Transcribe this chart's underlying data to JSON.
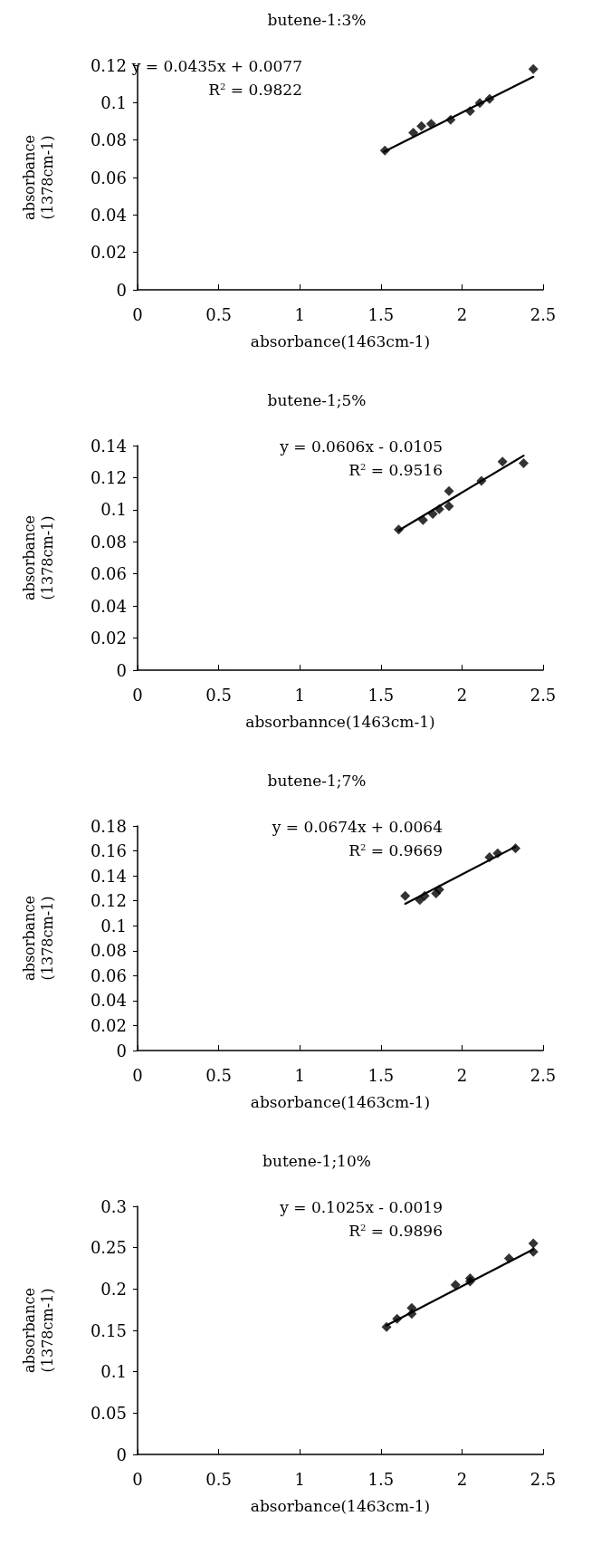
{
  "chart_data": [
    {
      "type": "scatter",
      "title": "butene-1:3%",
      "xlabel": "absorbance(1463cm-1)",
      "ylabel": "absorbance (1378cm-1)",
      "xlim": [
        0,
        2.5
      ],
      "xticks": [
        0,
        0.5,
        1,
        1.5,
        2,
        2.5
      ],
      "ylim": [
        0,
        0.12
      ],
      "yticks": [
        0,
        0.02,
        0.04,
        0.06,
        0.08,
        0.1,
        0.12
      ],
      "grid": false,
      "annotations": [
        "y = 0.0435x + 0.0077",
        "R$^{2}$ = 0.9822"
      ],
      "series": [
        {
          "type": "scatter",
          "color": "#000000",
          "marker": "diamond",
          "x": [
            1.525,
            1.7,
            1.75,
            1.81,
            1.93,
            2.05,
            2.11,
            2.17,
            2.44
          ],
          "values": [
            0.0744,
            0.084,
            0.0875,
            0.0887,
            0.0909,
            0.0954,
            0.0998,
            0.102,
            0.118
          ]
        },
        {
          "type": "line",
          "color": "#000000",
          "marker": "none",
          "line_style": "solid",
          "x": [
            1.52,
            2.44
          ],
          "values": [
            0.0738,
            0.1138
          ]
        }
      ]
    },
    {
      "type": "scatter",
      "title": "butene-1;5%",
      "xlabel": "absorbannce(1463cm-1)",
      "ylabel": "absorbance (1378cm-1)",
      "xlim": [
        0,
        2.5
      ],
      "xticks": [
        0,
        0.5,
        1,
        1.5,
        2,
        2.5
      ],
      "ylim": [
        0,
        0.14
      ],
      "yticks": [
        0,
        0.02,
        0.04,
        0.06,
        0.08,
        0.1,
        0.12,
        0.14
      ],
      "grid": false,
      "annotations": [
        "y = 0.0606x - 0.0105",
        "R$^{2}$ = 0.9516"
      ],
      "series": [
        {
          "type": "scatter",
          "color": "#000000",
          "marker": "diamond",
          "x": [
            1.61,
            1.76,
            1.82,
            1.86,
            1.92,
            1.92,
            2.12,
            2.25,
            2.38
          ],
          "values": [
            0.0877,
            0.0935,
            0.0974,
            0.1003,
            0.1117,
            0.1022,
            0.118,
            0.13,
            0.129
          ]
        },
        {
          "type": "line",
          "color": "#000000",
          "marker": "none",
          "line_style": "solid",
          "x": [
            1.61,
            2.38
          ],
          "values": [
            0.0871,
            0.1337
          ]
        }
      ]
    },
    {
      "type": "scatter",
      "title": "butene-1;7%",
      "xlabel": "absorbance(1463cm-1)",
      "ylabel": "absorbance (1378cm-1)",
      "xlim": [
        0,
        2.5
      ],
      "xticks": [
        0,
        0.5,
        1,
        1.5,
        2,
        2.5
      ],
      "ylim": [
        0,
        0.18
      ],
      "yticks": [
        0,
        0.02,
        0.04,
        0.06,
        0.08,
        0.1,
        0.12,
        0.14,
        0.16,
        0.18
      ],
      "grid": false,
      "annotations": [
        "y = 0.0674x + 0.0064",
        "R$^{2}$ = 0.9669"
      ],
      "series": [
        {
          "type": "scatter",
          "color": "#000000",
          "marker": "diamond",
          "x": [
            1.65,
            1.74,
            1.77,
            1.84,
            1.86,
            2.17,
            2.22,
            2.33
          ],
          "values": [
            0.1239,
            0.1207,
            0.124,
            0.126,
            0.129,
            0.155,
            0.158,
            0.162
          ]
        },
        {
          "type": "line",
          "color": "#000000",
          "marker": "none",
          "line_style": "solid",
          "x": [
            1.65,
            2.33
          ],
          "values": [
            0.1176,
            0.1634
          ]
        }
      ]
    },
    {
      "type": "scatter",
      "title": "butene-1;10%",
      "xlabel": "absorbance(1463cm-1)",
      "ylabel": "absorbance (1378cm-1)",
      "xlim": [
        0,
        2.5
      ],
      "xticks": [
        0,
        0.5,
        1,
        1.5,
        2,
        2.5
      ],
      "ylim": [
        0,
        0.3
      ],
      "yticks": [
        0,
        0.05,
        0.1,
        0.15,
        0.2,
        0.25,
        0.3
      ],
      "grid": false,
      "annotations": [
        "y = 0.1025x - 0.0019",
        "R$^{2}$ = 0.9896"
      ],
      "series": [
        {
          "type": "scatter",
          "color": "#000000",
          "marker": "diamond",
          "x": [
            1.535,
            1.6,
            1.69,
            1.69,
            1.96,
            2.05,
            2.05,
            2.29,
            2.44,
            2.44
          ],
          "values": [
            0.154,
            0.164,
            0.17,
            0.177,
            0.205,
            0.209,
            0.213,
            0.237,
            0.245,
            0.255
          ]
        },
        {
          "type": "line",
          "color": "#000000",
          "marker": "none",
          "line_style": "solid",
          "x": [
            1.535,
            2.44
          ],
          "values": [
            0.156,
            0.248
          ]
        }
      ]
    }
  ]
}
